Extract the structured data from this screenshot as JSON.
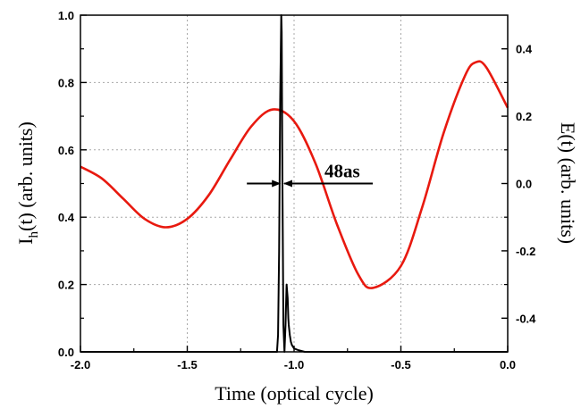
{
  "chart_data": {
    "type": "line",
    "xlabel": "Time (optical cycle)",
    "ylabel_left": "I_h(t) (arb. units)",
    "ylabel_left_parts": {
      "main": "I",
      "sub": "h",
      "rest": "(t) (arb. units)"
    },
    "ylabel_right": "E(t) (arb. units)",
    "xlim": [
      -2.0,
      0.0
    ],
    "ylim_left": [
      0.0,
      1.0
    ],
    "ylim_right": [
      -0.5,
      0.5
    ],
    "x_ticks": [
      "-2.0",
      "-1.5",
      "-1.0",
      "-0.5",
      "0.0"
    ],
    "x_tick_values": [
      -2.0,
      -1.5,
      -1.0,
      -0.5,
      0.0
    ],
    "y_left_ticks": [
      "0.0",
      "0.2",
      "0.4",
      "0.6",
      "0.8",
      "1.0"
    ],
    "y_left_tick_values": [
      0.0,
      0.2,
      0.4,
      0.6,
      0.8,
      1.0
    ],
    "y_right_ticks": [
      "-0.4",
      "-0.2",
      "0.0",
      "0.2",
      "0.4"
    ],
    "y_right_tick_values": [
      -0.4,
      -0.2,
      0.0,
      0.2,
      0.4
    ],
    "grid": true,
    "series": [
      {
        "axis": "right",
        "color": "#e8190f",
        "x": [
          -2.0,
          -1.9,
          -1.8,
          -1.7,
          -1.6,
          -1.5,
          -1.4,
          -1.3,
          -1.2,
          -1.1,
          -1.0,
          -0.9,
          -0.8,
          -0.7,
          -0.63,
          -0.5,
          -0.4,
          -0.3,
          -0.2,
          -0.15,
          -0.1,
          0.0
        ],
        "values": [
          0.05,
          0.015,
          -0.045,
          -0.105,
          -0.13,
          -0.105,
          -0.035,
          0.07,
          0.17,
          0.22,
          0.185,
          0.06,
          -0.12,
          -0.27,
          -0.31,
          -0.245,
          -0.07,
          0.15,
          0.32,
          0.36,
          0.345,
          0.225
        ]
      },
      {
        "axis": "left",
        "color": "#000000",
        "x": [
          -2.0,
          -1.08,
          -1.075,
          -1.07,
          -1.065,
          -1.06,
          -1.058,
          -1.055,
          -1.05,
          -1.045,
          -1.04,
          -1.035,
          -1.03,
          -1.027,
          -1.025,
          -1.02,
          -1.015,
          -1.01,
          -1.0,
          -0.98,
          -0.95,
          0.0
        ],
        "values": [
          0.0,
          0.0,
          0.05,
          0.3,
          0.75,
          1.0,
          0.95,
          0.55,
          0.08,
          0.0,
          0.08,
          0.2,
          0.16,
          0.1,
          0.08,
          0.05,
          0.03,
          0.02,
          0.01,
          0.005,
          0.0,
          0.0
        ]
      }
    ],
    "annotation": {
      "text": "48as",
      "x_left": -1.062,
      "x_right": -1.05,
      "y_right": 0.0
    }
  }
}
